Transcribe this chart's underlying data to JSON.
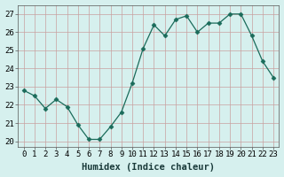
{
  "x": [
    0,
    1,
    2,
    3,
    4,
    5,
    6,
    7,
    8,
    9,
    10,
    11,
    12,
    13,
    14,
    15,
    16,
    17,
    18,
    19,
    20,
    21,
    22,
    23
  ],
  "y": [
    22.8,
    22.5,
    21.8,
    22.3,
    21.9,
    20.9,
    20.1,
    20.1,
    20.8,
    21.6,
    23.2,
    25.1,
    26.4,
    25.8,
    26.7,
    26.9,
    26.0,
    26.5,
    26.5,
    27.0,
    27.0,
    25.8,
    24.4,
    23.5
  ],
  "line_color": "#1a6b5a",
  "marker": "D",
  "marker_size": 2.5,
  "bg_color": "#d6f0ee",
  "grid_color": "#c8a0a0",
  "xlabel": "Humidex (Indice chaleur)",
  "ylim": [
    19.7,
    27.5
  ],
  "xlim": [
    -0.5,
    23.5
  ],
  "yticks": [
    20,
    21,
    22,
    23,
    24,
    25,
    26,
    27
  ],
  "xticks": [
    0,
    1,
    2,
    3,
    4,
    5,
    6,
    7,
    8,
    9,
    10,
    11,
    12,
    13,
    14,
    15,
    16,
    17,
    18,
    19,
    20,
    21,
    22,
    23
  ],
  "label_fontsize": 7.5,
  "tick_fontsize": 6.5
}
